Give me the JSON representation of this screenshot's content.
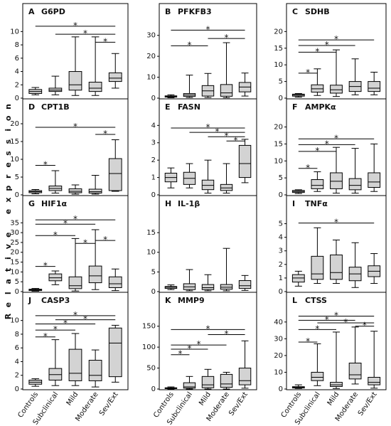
{
  "ylabel": "Relative expression",
  "categories": [
    "Controls",
    "Subclinical",
    "Mild",
    "Moderate",
    "Sev/Ext"
  ],
  "chart_data": [
    {
      "type": "box",
      "letter": "A",
      "title": "G6PD",
      "ylim": [
        0,
        11
      ],
      "yticks": [
        0,
        2,
        4,
        6,
        8,
        10
      ],
      "boxes": [
        {
          "wlo": 0.5,
          "q1": 0.7,
          "med": 1.0,
          "q3": 1.3,
          "whi": 1.6
        },
        {
          "wlo": 0.5,
          "q1": 1.0,
          "med": 1.2,
          "q3": 1.5,
          "whi": 3.3
        },
        {
          "wlo": 0.4,
          "q1": 1.2,
          "med": 2.0,
          "q3": 4.0,
          "whi": 9.2
        },
        {
          "wlo": 0.4,
          "q1": 1.0,
          "med": 1.5,
          "q3": 2.4,
          "whi": 9.2
        },
        {
          "wlo": 1.5,
          "q1": 2.5,
          "med": 3.0,
          "q3": 3.8,
          "whi": 6.7
        }
      ],
      "sig": [
        {
          "from": 0,
          "to": 4,
          "y": 10.8
        },
        {
          "from": 1,
          "to": 4,
          "y": 9.6
        },
        {
          "from": 3,
          "to": 4,
          "y": 8.4
        }
      ]
    },
    {
      "type": "box",
      "letter": "B",
      "title": "PFKFB3",
      "ylim": [
        0,
        35
      ],
      "yticks": [
        0,
        10,
        20,
        30
      ],
      "boxes": [
        {
          "wlo": 0.2,
          "q1": 0.5,
          "med": 0.8,
          "q3": 1.1,
          "whi": 1.6
        },
        {
          "wlo": 0.3,
          "q1": 0.8,
          "med": 1.5,
          "q3": 2.2,
          "whi": 11
        },
        {
          "wlo": 0.3,
          "q1": 1.0,
          "med": 3.5,
          "q3": 6.0,
          "whi": 11.8
        },
        {
          "wlo": 0.2,
          "q1": 0.9,
          "med": 2.5,
          "q3": 6.5,
          "whi": 26.5
        },
        {
          "wlo": 1.0,
          "q1": 3.0,
          "med": 5.3,
          "q3": 7.5,
          "whi": 12
        }
      ],
      "sig": [
        {
          "from": 0,
          "to": 4,
          "y": 32.5
        },
        {
          "from": 2,
          "to": 4,
          "y": 28.5
        },
        {
          "from": 0,
          "to": 2,
          "y": 25.0
        }
      ]
    },
    {
      "type": "box",
      "letter": "C",
      "title": "SDHB",
      "ylim": [
        0,
        22
      ],
      "yticks": [
        0,
        5,
        10,
        15,
        20
      ],
      "boxes": [
        {
          "wlo": 0.3,
          "q1": 0.6,
          "med": 0.9,
          "q3": 1.2,
          "whi": 1.4
        },
        {
          "wlo": 0.8,
          "q1": 1.8,
          "med": 2.8,
          "q3": 4.0,
          "whi": 8.8
        },
        {
          "wlo": 0.5,
          "q1": 1.5,
          "med": 2.5,
          "q3": 3.9,
          "whi": 14.5
        },
        {
          "wlo": 1.0,
          "q1": 2.0,
          "med": 3.5,
          "q3": 5.0,
          "whi": 11.8
        },
        {
          "wlo": 1.0,
          "q1": 2.0,
          "med": 3.0,
          "q3": 5.0,
          "whi": 7.8
        }
      ],
      "sig": [
        {
          "from": 0,
          "to": 4,
          "y": 17.5
        },
        {
          "from": 0,
          "to": 3,
          "y": 15.8
        },
        {
          "from": 0,
          "to": 2,
          "y": 13.8
        },
        {
          "from": 0,
          "to": 1,
          "y": 7.5
        }
      ]
    },
    {
      "type": "box",
      "letter": "D",
      "title": "CPT1B",
      "ylim": [
        0,
        21
      ],
      "yticks": [
        0,
        5,
        10,
        15,
        20
      ],
      "boxes": [
        {
          "wlo": 0.3,
          "q1": 0.6,
          "med": 0.9,
          "q3": 1.2,
          "whi": 1.5
        },
        {
          "wlo": 0.5,
          "q1": 1.2,
          "med": 1.8,
          "q3": 2.5,
          "whi": 6.8
        },
        {
          "wlo": 0.2,
          "q1": 0.6,
          "med": 1.0,
          "q3": 1.7,
          "whi": 2.8
        },
        {
          "wlo": 0.2,
          "q1": 0.5,
          "med": 0.9,
          "q3": 1.6,
          "whi": 5.5
        },
        {
          "wlo": 1.0,
          "q1": 1.2,
          "med": 6.0,
          "q3": 10.2,
          "whi": 15.5
        }
      ],
      "sig": [
        {
          "from": 0,
          "to": 4,
          "y": 19.0
        },
        {
          "from": 3,
          "to": 4,
          "y": 17.0
        },
        {
          "from": 0,
          "to": 1,
          "y": 8.3
        }
      ]
    },
    {
      "type": "box",
      "letter": "E",
      "title": "FASN",
      "ylim": [
        0,
        4.3
      ],
      "yticks": [
        0,
        1,
        2,
        3,
        4
      ],
      "boxes": [
        {
          "wlo": 0.4,
          "q1": 0.75,
          "med": 1.0,
          "q3": 1.25,
          "whi": 1.55
        },
        {
          "wlo": 0.4,
          "q1": 0.6,
          "med": 0.95,
          "q3": 1.3,
          "whi": 1.8
        },
        {
          "wlo": 0.1,
          "q1": 0.3,
          "med": 0.55,
          "q3": 0.85,
          "whi": 2.0
        },
        {
          "wlo": 0.1,
          "q1": 0.25,
          "med": 0.4,
          "q3": 0.6,
          "whi": 1.8
        },
        {
          "wlo": 0.7,
          "q1": 1.0,
          "med": 1.8,
          "q3": 2.85,
          "whi": 3.2
        }
      ],
      "sig": [
        {
          "from": 0,
          "to": 4,
          "y": 3.85
        },
        {
          "from": 1,
          "to": 4,
          "y": 3.6
        },
        {
          "from": 2,
          "to": 4,
          "y": 3.35
        },
        {
          "from": 3,
          "to": 4,
          "y": 3.1
        }
      ]
    },
    {
      "type": "box",
      "letter": "F",
      "title": "AMPKα",
      "ylim": [
        0,
        22
      ],
      "yticks": [
        0,
        5,
        10,
        15,
        20
      ],
      "boxes": [
        {
          "wlo": 0.4,
          "q1": 0.7,
          "med": 1.0,
          "q3": 1.3,
          "whi": 1.5
        },
        {
          "wlo": 1.0,
          "q1": 1.8,
          "med": 2.8,
          "q3": 4.5,
          "whi": 6.8
        },
        {
          "wlo": 0.5,
          "q1": 1.8,
          "med": 4.0,
          "q3": 6.5,
          "whi": 14
        },
        {
          "wlo": 0.5,
          "q1": 1.5,
          "med": 2.8,
          "q3": 4.8,
          "whi": 13.7
        },
        {
          "wlo": 1.0,
          "q1": 2.2,
          "med": 3.8,
          "q3": 6.5,
          "whi": 15
        }
      ],
      "sig": [
        {
          "from": 0,
          "to": 4,
          "y": 16.5
        },
        {
          "from": 0,
          "to": 3,
          "y": 14.8
        },
        {
          "from": 0,
          "to": 2,
          "y": 12.8
        },
        {
          "from": 0,
          "to": 1,
          "y": 7.8
        }
      ]
    },
    {
      "type": "box",
      "letter": "G",
      "title": "HIF1α",
      "ylim": [
        0,
        38
      ],
      "yticks": [
        0,
        5,
        10,
        15,
        20,
        25,
        30,
        35
      ],
      "boxes": [
        {
          "wlo": 0.2,
          "q1": 0.5,
          "med": 0.9,
          "q3": 1.2,
          "whi": 1.6
        },
        {
          "wlo": 3.5,
          "q1": 5.5,
          "med": 7.0,
          "q3": 9.0,
          "whi": 10.5
        },
        {
          "wlo": 0.3,
          "q1": 1.5,
          "med": 3.0,
          "q3": 7.5,
          "whi": 27
        },
        {
          "wlo": 1.0,
          "q1": 4.5,
          "med": 8.0,
          "q3": 13.0,
          "whi": 31.5
        },
        {
          "wlo": 0.5,
          "q1": 2.0,
          "med": 4.0,
          "q3": 7.5,
          "whi": 11.5
        }
      ],
      "sig": [
        {
          "from": 0,
          "to": 4,
          "y": 36.5
        },
        {
          "from": 0,
          "to": 3,
          "y": 34.3
        },
        {
          "from": 0,
          "to": 2,
          "y": 28.5
        },
        {
          "from": 2,
          "to": 3,
          "y": 24.5
        },
        {
          "from": 3,
          "to": 4,
          "y": 26.0
        },
        {
          "from": 0,
          "to": 1,
          "y": 12.8
        }
      ]
    },
    {
      "type": "box",
      "letter": "H",
      "title": "IL-1β",
      "ylim": [
        0,
        19
      ],
      "yticks": [
        0,
        5,
        10,
        15
      ],
      "boxes": [
        {
          "wlo": 0.5,
          "q1": 0.8,
          "med": 1.1,
          "q3": 1.3,
          "whi": 1.7
        },
        {
          "wlo": 0.2,
          "q1": 0.5,
          "med": 1.2,
          "q3": 2.0,
          "whi": 5.6
        },
        {
          "wlo": 0.2,
          "q1": 0.5,
          "med": 1.0,
          "q3": 1.8,
          "whi": 4.3
        },
        {
          "wlo": 0.2,
          "q1": 0.6,
          "med": 1.1,
          "q3": 1.8,
          "whi": 11
        },
        {
          "wlo": 0.3,
          "q1": 0.8,
          "med": 1.5,
          "q3": 2.8,
          "whi": 4.1
        }
      ],
      "sig": []
    },
    {
      "type": "box",
      "letter": "I",
      "title": "TNFα",
      "ylim": [
        0,
        5.5
      ],
      "yticks": [
        0,
        1,
        2,
        3,
        4,
        5
      ],
      "boxes": [
        {
          "wlo": 0.4,
          "q1": 0.7,
          "med": 1.0,
          "q3": 1.25,
          "whi": 1.5
        },
        {
          "wlo": 0.6,
          "q1": 0.9,
          "med": 1.3,
          "q3": 2.6,
          "whi": 4.7
        },
        {
          "wlo": 0.6,
          "q1": 0.9,
          "med": 1.4,
          "q3": 2.7,
          "whi": 3.8
        },
        {
          "wlo": 0.3,
          "q1": 0.8,
          "med": 1.3,
          "q3": 1.8,
          "whi": 3.6
        },
        {
          "wlo": 0.6,
          "q1": 1.1,
          "med": 1.5,
          "q3": 1.9,
          "whi": 2.8
        }
      ],
      "sig": [
        {
          "from": 0,
          "to": 4,
          "y": 5.05
        }
      ]
    },
    {
      "type": "box",
      "letter": "J",
      "title": "CASP3",
      "ylim": [
        0,
        11
      ],
      "yticks": [
        0,
        2,
        4,
        6,
        8,
        10
      ],
      "boxes": [
        {
          "wlo": 0.4,
          "q1": 0.7,
          "med": 1.0,
          "q3": 1.3,
          "whi": 1.5
        },
        {
          "wlo": 0.5,
          "q1": 1.3,
          "med": 2.1,
          "q3": 3.0,
          "whi": 7.2
        },
        {
          "wlo": 0.5,
          "q1": 1.2,
          "med": 2.3,
          "q3": 5.8,
          "whi": 8.1
        },
        {
          "wlo": 0.3,
          "q1": 1.2,
          "med": 2.0,
          "q3": 4.2,
          "whi": 5.7
        },
        {
          "wlo": 1.0,
          "q1": 1.8,
          "med": 6.7,
          "q3": 8.9,
          "whi": 9.3
        }
      ],
      "sig": [
        {
          "from": 0,
          "to": 4,
          "y": 10.7
        },
        {
          "from": 1,
          "to": 4,
          "y": 10.1
        },
        {
          "from": 0,
          "to": 3,
          "y": 9.5
        },
        {
          "from": 0,
          "to": 2,
          "y": 8.6
        },
        {
          "from": 0,
          "to": 1,
          "y": 7.6
        }
      ]
    },
    {
      "type": "box",
      "letter": "K",
      "title": "MMP9",
      "ylim": [
        0,
        180
      ],
      "yticks": [
        0,
        50,
        100,
        150
      ],
      "boxes": [
        {
          "wlo": 0,
          "q1": 1,
          "med": 2,
          "q3": 3,
          "whi": 5
        },
        {
          "wlo": 0,
          "q1": 2,
          "med": 5,
          "q3": 15,
          "whi": 30
        },
        {
          "wlo": 0,
          "q1": 3,
          "med": 10,
          "q3": 30,
          "whi": 47
        },
        {
          "wlo": 0,
          "q1": 4,
          "med": 12,
          "q3": 35,
          "whi": 40
        },
        {
          "wlo": 2,
          "q1": 10,
          "med": 20,
          "q3": 50,
          "whi": 115
        }
      ],
      "sig": [
        {
          "from": 0,
          "to": 4,
          "y": 142
        },
        {
          "from": 2,
          "to": 4,
          "y": 130
        },
        {
          "from": 0,
          "to": 3,
          "y": 105
        },
        {
          "from": 0,
          "to": 2,
          "y": 95
        },
        {
          "from": 0,
          "to": 1,
          "y": 82
        }
      ]
    },
    {
      "type": "box",
      "letter": "L",
      "title": "CTSS",
      "ylim": [
        0,
        45
      ],
      "yticks": [
        0,
        10,
        20,
        30,
        40
      ],
      "boxes": [
        {
          "wlo": 0.3,
          "q1": 0.6,
          "med": 1.0,
          "q3": 1.4,
          "whi": 2.5
        },
        {
          "wlo": 2.0,
          "q1": 5.0,
          "med": 7.0,
          "q3": 10.0,
          "whi": 27
        },
        {
          "wlo": 0.3,
          "q1": 1.5,
          "med": 2.5,
          "q3": 4.0,
          "whi": 34
        },
        {
          "wlo": 3.0,
          "q1": 6.0,
          "med": 8.5,
          "q3": 15.5,
          "whi": 37
        },
        {
          "wlo": 0.5,
          "q1": 2.5,
          "med": 4.0,
          "q3": 7.0,
          "whi": 34.5
        }
      ],
      "sig": [
        {
          "from": 0,
          "to": 4,
          "y": 43.5
        },
        {
          "from": 0,
          "to": 3,
          "y": 41.0
        },
        {
          "from": 1,
          "to": 4,
          "y": 39.5
        },
        {
          "from": 3,
          "to": 4,
          "y": 37.5
        },
        {
          "from": 0,
          "to": 2,
          "y": 35.5
        },
        {
          "from": 0,
          "to": 1,
          "y": 28.0
        }
      ]
    }
  ]
}
